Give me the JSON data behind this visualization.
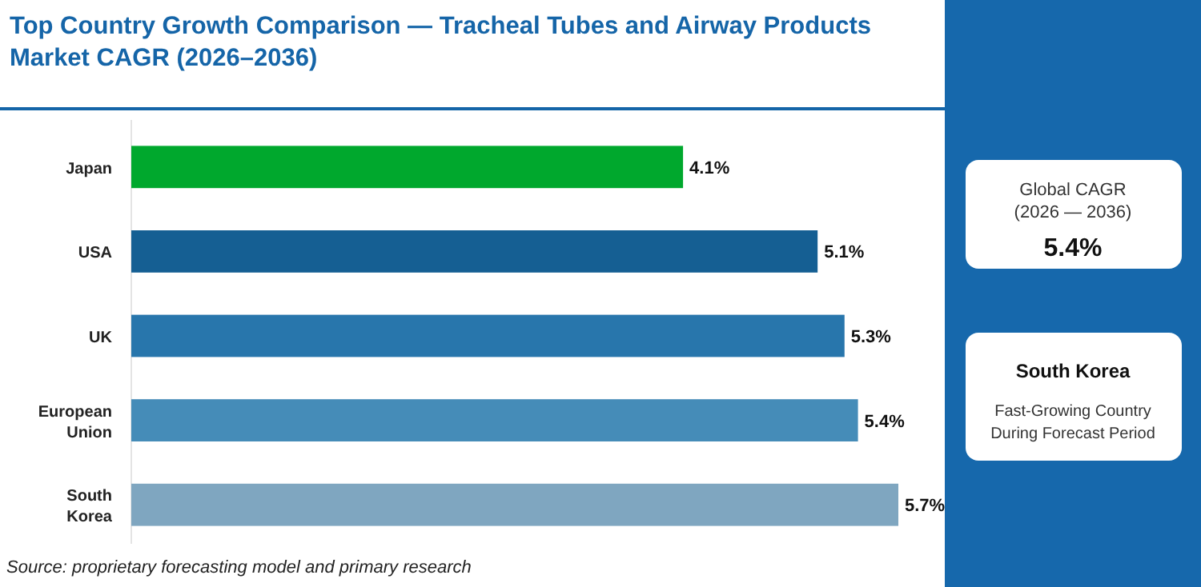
{
  "chart_data": {
    "type": "bar",
    "orientation": "horizontal",
    "title": "Top Country Growth Comparison — Tracheal Tubes and Airway Products Market CAGR (2026–2036)",
    "categories": [
      "Japan",
      "USA",
      "UK",
      "European Union",
      "South Korea"
    ],
    "values": [
      4.1,
      5.1,
      5.3,
      5.4,
      5.7
    ],
    "colors": [
      "#00a82d",
      "#155f93",
      "#2876ac",
      "#458cb8",
      "#7fa6c0"
    ],
    "value_labels": [
      "4.1%",
      "5.1%",
      "5.3%",
      "5.4%",
      "5.7%"
    ],
    "annotations": [
      "Global CAGR",
      "(2026 — 2036)",
      "5.4%",
      "South Korea",
      "Fast-Growing Country During Forecast Period",
      "Source: proprietary forecasting model and primary research"
    ]
  }
}
